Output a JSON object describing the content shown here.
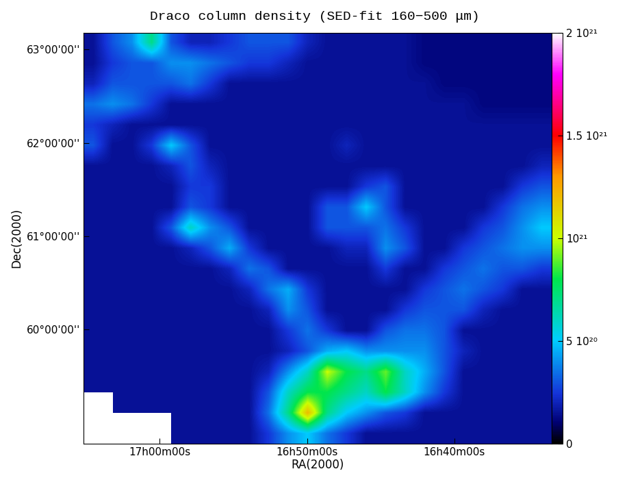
{
  "chart_data": {
    "type": "heatmap",
    "title": "Draco column density (SED-fit 160−500 μm)",
    "x_label": "RA(2000)",
    "y_label": "Dec(2000)",
    "xlim": [
      65.15,
      33.41
    ],
    "xticks": [
      {
        "value": 60,
        "label": "17h00m00s"
      },
      {
        "value": 50,
        "label": "16h50m00s"
      },
      {
        "value": 40,
        "label": "16h40m00s"
      }
    ],
    "ylim": [
      58.78,
      63.18
    ],
    "yticks": [
      {
        "value": 60,
        "label": "60°00'00''"
      },
      {
        "value": 61,
        "label": "61°00'00''"
      },
      {
        "value": 62,
        "label": "62°00'00''"
      },
      {
        "value": 63,
        "label": "63°00'00''"
      }
    ],
    "colorbar_range": [
      0,
      2e+21
    ],
    "colorbar_ticks": [
      {
        "value": 0,
        "label": "0"
      },
      {
        "value": 5e+20,
        "label": "5 10²⁰"
      },
      {
        "value": 1e+21,
        "label": "10²¹"
      },
      {
        "value": 1.5e+21,
        "label": "1.5 10²¹"
      },
      {
        "value": 2e+21,
        "label": "2 10²¹"
      }
    ],
    "cells": [
      [
        1.5e+20,
        3e+20,
        4e+20,
        7e+20,
        3e+20,
        2e+20,
        2e+20,
        2.5e+20,
        3e+20,
        3e+20,
        3e+20,
        2e+20,
        1.5e+20,
        1.5e+20,
        1.5e+20,
        1.5e+20,
        1.5e+20,
        1.2e+20,
        1.2e+20,
        1.2e+20,
        1.2e+20,
        1.2e+20,
        1.2e+20,
        1.2e+20
      ],
      [
        1.5e+20,
        2.5e+20,
        3e+20,
        3e+20,
        4e+20,
        4e+20,
        3.5e+20,
        3e+20,
        2.5e+20,
        2.5e+20,
        2e+20,
        1.5e+20,
        1.5e+20,
        1.5e+20,
        1.5e+20,
        1.5e+20,
        1.5e+20,
        1.2e+20,
        1.2e+20,
        1.2e+20,
        1.2e+20,
        1.2e+20,
        1.2e+20,
        1.2e+20
      ],
      [
        2e+20,
        3e+20,
        3e+20,
        3e+20,
        3e+20,
        3.5e+20,
        2.5e+20,
        1.5e+20,
        1.5e+20,
        1.5e+20,
        1.5e+20,
        1.5e+20,
        1.5e+20,
        1.5e+20,
        1.5e+20,
        1.5e+20,
        1.5e+20,
        1.5e+20,
        1.2e+20,
        1.2e+20,
        1.2e+20,
        1.2e+20,
        1.2e+20,
        1.2e+20
      ],
      [
        3.5e+20,
        4e+20,
        3.5e+20,
        2.5e+20,
        1.5e+20,
        1.5e+20,
        1.5e+20,
        1.5e+20,
        1.5e+20,
        1.5e+20,
        1.5e+20,
        1.5e+20,
        1.5e+20,
        1.5e+20,
        1.5e+20,
        1.5e+20,
        1.5e+20,
        1.5e+20,
        1.5e+20,
        1.5e+20,
        1.2e+20,
        1.2e+20,
        1.2e+20,
        1.2e+20
      ],
      [
        2.5e+20,
        2e+20,
        1.5e+20,
        1.5e+20,
        1.5e+20,
        1.5e+20,
        1.5e+20,
        1.5e+20,
        1.5e+20,
        1.5e+20,
        1.5e+20,
        1.5e+20,
        1.5e+20,
        1.5e+20,
        1.5e+20,
        1.5e+20,
        1.5e+20,
        1.5e+20,
        1.5e+20,
        1.5e+20,
        1.5e+20,
        1.5e+20,
        1.5e+20,
        1.5e+20
      ],
      [
        3e+20,
        1.5e+20,
        1.5e+20,
        2.5e+20,
        5e+20,
        3e+20,
        1.5e+20,
        1.5e+20,
        1.5e+20,
        1.5e+20,
        1.5e+20,
        1.5e+20,
        1.5e+20,
        2e+20,
        1.5e+20,
        1.5e+20,
        1.5e+20,
        1.5e+20,
        1.5e+20,
        1.5e+20,
        1.5e+20,
        1.5e+20,
        1.5e+20,
        1.5e+20
      ],
      [
        1.5e+20,
        1.5e+20,
        1.5e+20,
        1.5e+20,
        2e+20,
        3e+20,
        2e+20,
        1.5e+20,
        1.5e+20,
        1.5e+20,
        1.5e+20,
        1.5e+20,
        1.5e+20,
        1.5e+20,
        1.5e+20,
        1.5e+20,
        1.5e+20,
        1.5e+20,
        1.5e+20,
        1.5e+20,
        1.5e+20,
        1.5e+20,
        1.5e+20,
        2e+20
      ],
      [
        1.5e+20,
        1.5e+20,
        1.5e+20,
        1.5e+20,
        1.5e+20,
        2.5e+20,
        2.5e+20,
        1.5e+20,
        1.5e+20,
        1.5e+20,
        1.5e+20,
        1.5e+20,
        1.5e+20,
        1.5e+20,
        2.5e+20,
        3e+20,
        1.5e+20,
        1.5e+20,
        1.5e+20,
        1.5e+20,
        1.5e+20,
        1.5e+20,
        2.5e+20,
        3e+20
      ],
      [
        1.5e+20,
        1.5e+20,
        1.5e+20,
        1.5e+20,
        1.5e+20,
        3e+20,
        2.5e+20,
        1.5e+20,
        1.5e+20,
        1.5e+20,
        1.5e+20,
        1.5e+20,
        3e+20,
        3e+20,
        5e+20,
        3e+20,
        1.5e+20,
        1.5e+20,
        1.5e+20,
        1.5e+20,
        1.5e+20,
        2.5e+20,
        3.5e+20,
        4e+20
      ],
      [
        1.5e+20,
        1.5e+20,
        1.5e+20,
        1.5e+20,
        3e+20,
        6e+20,
        4e+20,
        3e+20,
        1.5e+20,
        1.5e+20,
        1.5e+20,
        1.5e+20,
        3e+20,
        3e+20,
        3e+20,
        3.5e+20,
        2.5e+20,
        1.5e+20,
        1.5e+20,
        1.5e+20,
        2.5e+20,
        3e+20,
        4e+20,
        5e+20
      ],
      [
        1.5e+20,
        1.5e+20,
        1.5e+20,
        1.5e+20,
        1.5e+20,
        2e+20,
        3e+20,
        4.5e+20,
        2.5e+20,
        1.5e+20,
        1.5e+20,
        1.5e+20,
        1.5e+20,
        2e+20,
        2e+20,
        4e+20,
        3e+20,
        1.5e+20,
        1.5e+20,
        2.5e+20,
        3e+20,
        3.5e+20,
        4e+20,
        4e+20
      ],
      [
        1.5e+20,
        1.5e+20,
        1.5e+20,
        1.5e+20,
        1.5e+20,
        1.5e+20,
        1.5e+20,
        2e+20,
        3.5e+20,
        3e+20,
        1.5e+20,
        1.5e+20,
        1.5e+20,
        1.5e+20,
        1.5e+20,
        2.5e+20,
        1.5e+20,
        1.5e+20,
        2.5e+20,
        3e+20,
        3.5e+20,
        3e+20,
        3e+20,
        2.5e+20
      ],
      [
        1.5e+20,
        1.5e+20,
        1.5e+20,
        1.5e+20,
        1.5e+20,
        1.5e+20,
        1.5e+20,
        1.5e+20,
        2e+20,
        3.5e+20,
        4.5e+20,
        2.5e+20,
        1.5e+20,
        1.5e+20,
        1.5e+20,
        1.5e+20,
        1.5e+20,
        2.5e+20,
        3e+20,
        3.5e+20,
        3e+20,
        2.5e+20,
        1.5e+20,
        1.5e+20
      ],
      [
        1.5e+20,
        1.5e+20,
        1.5e+20,
        1.5e+20,
        1.5e+20,
        1.5e+20,
        1.5e+20,
        1.5e+20,
        1.5e+20,
        2e+20,
        4e+20,
        3e+20,
        1.5e+20,
        1.5e+20,
        1.5e+20,
        1.5e+20,
        2.5e+20,
        3e+20,
        3e+20,
        3e+20,
        2e+20,
        1.5e+20,
        1.5e+20,
        1.5e+20
      ],
      [
        1.5e+20,
        1.5e+20,
        1.5e+20,
        1.5e+20,
        1.5e+20,
        1.5e+20,
        1.5e+20,
        1.5e+20,
        1.5e+20,
        1.5e+20,
        2.5e+20,
        3.5e+20,
        2.5e+20,
        1.5e+20,
        1.5e+20,
        3e+20,
        3.5e+20,
        3.5e+20,
        3e+20,
        1.5e+20,
        1.5e+20,
        1.5e+20,
        1.5e+20,
        1.5e+20
      ],
      [
        1.5e+20,
        1.5e+20,
        1.5e+20,
        1.5e+20,
        1.5e+20,
        1.5e+20,
        1.5e+20,
        1.5e+20,
        1.5e+20,
        1.5e+20,
        2e+20,
        3e+20,
        4.5e+20,
        5e+20,
        4e+20,
        4e+20,
        4e+20,
        4e+20,
        3e+20,
        2e+20,
        1.5e+20,
        1.5e+20,
        1.5e+20,
        1.5e+20
      ],
      [
        1.5e+20,
        1.5e+20,
        1.5e+20,
        1.5e+20,
        1.5e+20,
        1.5e+20,
        1.5e+20,
        1.5e+20,
        1.5e+20,
        2e+20,
        4e+20,
        6e+20,
        1e+21,
        8e+20,
        7e+20,
        9e+20,
        6e+20,
        4.5e+20,
        3e+20,
        1.5e+20,
        1.5e+20,
        1.5e+20,
        1.5e+20,
        1.5e+20
      ],
      [
        1.5e+20,
        1.5e+20,
        1.5e+20,
        1.5e+20,
        1.5e+20,
        1.5e+20,
        1.5e+20,
        1.5e+20,
        1.5e+20,
        3e+20,
        6e+20,
        8e+20,
        8e+20,
        7e+20,
        6e+20,
        8e+20,
        6e+20,
        4e+20,
        2.5e+20,
        1.5e+20,
        1.5e+20,
        1.5e+20,
        1.5e+20,
        1.5e+20
      ],
      [
        null,
        1.5e+20,
        1.5e+20,
        1.5e+20,
        1.5e+20,
        1.5e+20,
        1.5e+20,
        1.5e+20,
        1.5e+20,
        3.5e+20,
        7e+20,
        1.2e+21,
        7e+20,
        5e+20,
        4e+20,
        3e+20,
        2.5e+20,
        1.5e+20,
        1.5e+20,
        1.5e+20,
        1.5e+20,
        1.5e+20,
        1.5e+20,
        1.5e+20
      ],
      [
        null,
        null,
        null,
        null,
        1.5e+20,
        1.5e+20,
        1.5e+20,
        1.5e+20,
        1.5e+20,
        2.5e+20,
        4e+20,
        5e+20,
        3.5e+20,
        2.5e+20,
        1.5e+20,
        1.5e+20,
        1.5e+20,
        1.5e+20,
        1.5e+20,
        1.5e+20,
        1.5e+20,
        1.5e+20,
        1.5e+20,
        1.5e+20
      ]
    ]
  }
}
